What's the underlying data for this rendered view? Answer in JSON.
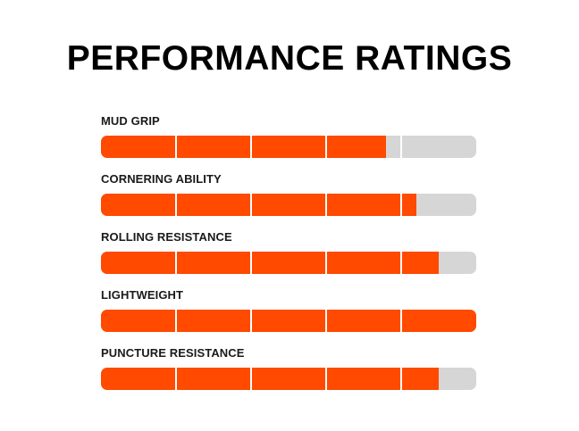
{
  "title": "PERFORMANCE RATINGS",
  "colors": {
    "fill": "#ff4a00",
    "track": "#d6d6d6",
    "divider": "#ffffff"
  },
  "chart_data": {
    "type": "bar",
    "orientation": "horizontal",
    "scale_segments": 5,
    "xlim": [
      0,
      5
    ],
    "categories": [
      "MUD GRIP",
      "CORNERING ABILITY",
      "ROLLING RESISTANCE",
      "LIGHTWEIGHT",
      "PUNCTURE RESISTANCE"
    ],
    "values": [
      3.8,
      4.2,
      4.5,
      5.0,
      4.5
    ]
  }
}
